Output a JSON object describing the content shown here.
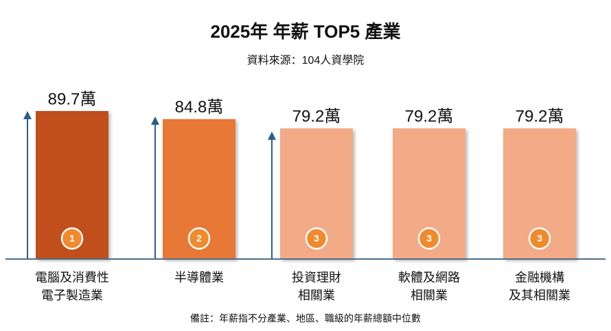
{
  "chart_data": {
    "type": "bar",
    "title": "2025年 年薪 TOP5 產業",
    "subtitle": "資料來源：104人資學院",
    "categories": [
      [
        "電腦及消費性",
        "電子製造業"
      ],
      [
        "半導體業"
      ],
      [
        "投資理財",
        "相關業"
      ],
      [
        "軟體及網路",
        "相關業"
      ],
      [
        "金融機構",
        "及其相關業"
      ]
    ],
    "values": [
      89.7,
      84.8,
      79.2,
      79.2,
      79.2
    ],
    "value_labels": [
      "89.7萬",
      "84.8萬",
      "79.2萬",
      "79.2萬",
      "79.2萬"
    ],
    "ranks": [
      1,
      2,
      3,
      3,
      3
    ],
    "colors": [
      "#c0501a",
      "#e87835",
      "#f2ab86",
      "#f2ab86",
      "#f2ab86"
    ],
    "note": "備註：年薪指不分產業、地區、職級的年薪總額中位數"
  }
}
